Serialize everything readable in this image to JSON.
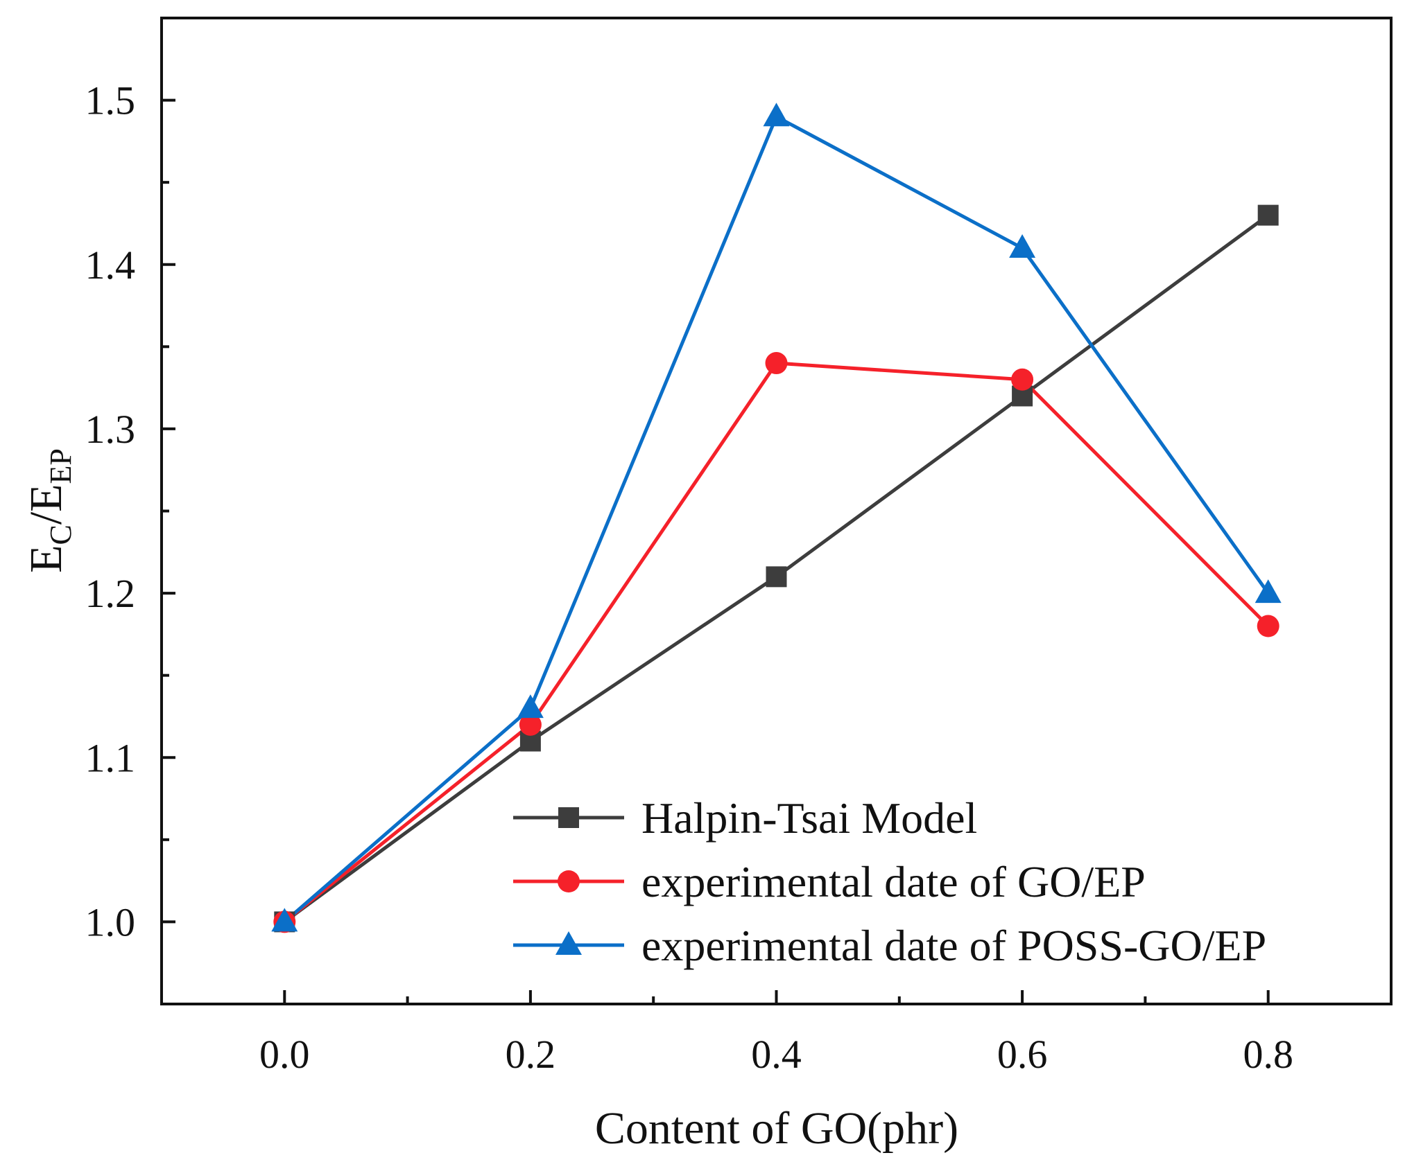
{
  "chart_data": {
    "type": "line",
    "title": "",
    "xlabel": "Content of GO(phr)",
    "ylabel": {
      "main": "E",
      "sub1": "C",
      "sep": "/E",
      "sub2": "EP"
    },
    "x": [
      0.0,
      0.2,
      0.4,
      0.6,
      0.8
    ],
    "xlim": [
      -0.1,
      0.9
    ],
    "ylim": [
      0.95,
      1.55
    ],
    "x_ticks": [
      "0.0",
      "0.2",
      "0.4",
      "0.6",
      "0.8"
    ],
    "y_ticks": [
      "1.0",
      "1.1",
      "1.2",
      "1.3",
      "1.4",
      "1.5"
    ],
    "legend_position": "bottom-right",
    "grid": false,
    "series": [
      {
        "name": "Halpin-Tsai Model",
        "color": "#3d3d3d",
        "marker": "square",
        "values": [
          1.0,
          1.11,
          1.21,
          1.32,
          1.43
        ]
      },
      {
        "name": "experimental date of GO/EP",
        "color": "#f5212a",
        "marker": "circle",
        "values": [
          1.0,
          1.12,
          1.34,
          1.33,
          1.18
        ]
      },
      {
        "name": "experimental date of POSS-GO/EP",
        "color": "#0b6fc8",
        "marker": "triangle",
        "values": [
          1.0,
          1.13,
          1.49,
          1.41,
          1.2
        ]
      }
    ]
  }
}
